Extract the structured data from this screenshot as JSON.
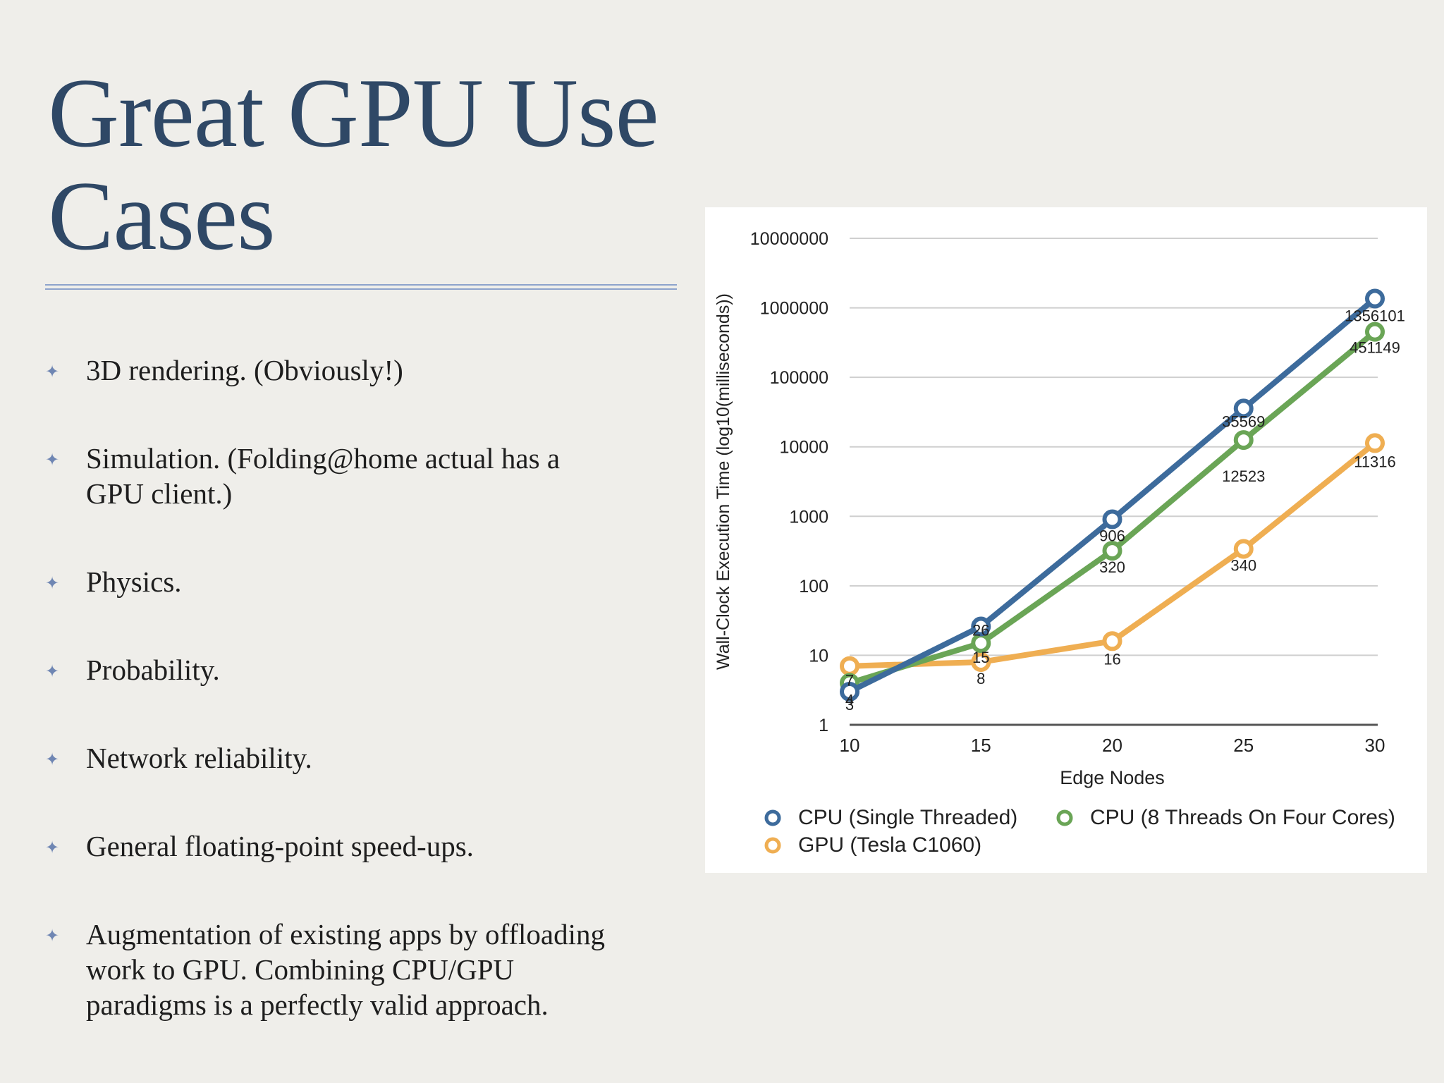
{
  "slide": {
    "title_line1": "Great GPU Use",
    "title_line2": "Cases",
    "bullet_marker": "✦",
    "bullets": [
      {
        "line1": "3D rendering. (Obviously!)"
      },
      {
        "line1": "Simulation. (Folding@home actual has a",
        "line2": "GPU client.)"
      },
      {
        "line1": "Physics."
      },
      {
        "line1": "Probability."
      },
      {
        "line1": "Network reliability."
      },
      {
        "line1": "General floating-point speed-ups."
      },
      {
        "line1": "Augmentation of existing apps by offloading",
        "line2": "work to GPU. Combining CPU/GPU",
        "line3": "paradigms is a perfectly valid approach."
      }
    ]
  },
  "chart_data": {
    "type": "line",
    "title": "",
    "xlabel": "Edge Nodes",
    "ylabel": "Wall-Clock Execution Time (log10(milliseconds))",
    "x": [
      10,
      15,
      20,
      25,
      30
    ],
    "x_tick_labels": [
      "10",
      "15",
      "20",
      "25",
      "30"
    ],
    "y_scale": "log10",
    "ylim": [
      1,
      10000000
    ],
    "y_tick_labels": [
      "1",
      "10",
      "100",
      "1000",
      "10000",
      "100000",
      "1000000",
      "10000000"
    ],
    "y_ticks": [
      1,
      10,
      100,
      1000,
      10000,
      100000,
      1000000,
      10000000
    ],
    "grid": true,
    "legend_position": "bottom",
    "series": [
      {
        "name": "CPU (Single Threaded)",
        "color": "#3d6b9c",
        "values": [
          3,
          26,
          906,
          35569,
          1356101
        ],
        "labels": [
          "3",
          "26",
          "906",
          "35569",
          "1356101"
        ]
      },
      {
        "name": "CPU (8 Threads On Four Cores)",
        "color": "#6aa556",
        "values": [
          4,
          15,
          320,
          12523,
          451149
        ],
        "labels": [
          "4",
          "15",
          "320",
          "12523",
          "451149"
        ]
      },
      {
        "name": "GPU (Tesla C1060)",
        "color": "#efae52",
        "values": [
          7,
          8,
          16,
          340,
          11316
        ],
        "labels": [
          "7",
          "8",
          "16",
          "340",
          "11316"
        ]
      }
    ]
  }
}
